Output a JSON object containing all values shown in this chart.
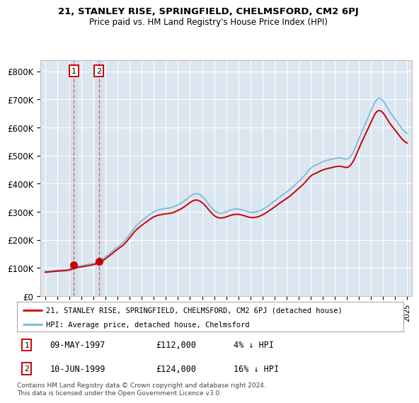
{
  "title_line1": "21, STANLEY RISE, SPRINGFIELD, CHELMSFORD, CM2 6PJ",
  "title_line2": "Price paid vs. HM Land Registry's House Price Index (HPI)",
  "ylabel_ticks": [
    "£0",
    "£100K",
    "£200K",
    "£300K",
    "£400K",
    "£500K",
    "£600K",
    "£700K",
    "£800K"
  ],
  "ytick_values": [
    0,
    100000,
    200000,
    300000,
    400000,
    500000,
    600000,
    700000,
    800000
  ],
  "ylim": [
    0,
    840000
  ],
  "xlim_start": 1994.6,
  "xlim_end": 2025.4,
  "xtick_years": [
    1995,
    1996,
    1997,
    1998,
    1999,
    2000,
    2001,
    2002,
    2003,
    2004,
    2005,
    2006,
    2007,
    2008,
    2009,
    2010,
    2011,
    2012,
    2013,
    2014,
    2015,
    2016,
    2017,
    2018,
    2019,
    2020,
    2021,
    2022,
    2023,
    2024,
    2025
  ],
  "sale_dates": [
    1997.36,
    1999.45
  ],
  "sale_prices": [
    112000,
    124000
  ],
  "sale_labels": [
    "1",
    "2"
  ],
  "sale_info": [
    {
      "label": "1",
      "date": "09-MAY-1997",
      "price": "£112,000",
      "hpi": "4% ↓ HPI"
    },
    {
      "label": "2",
      "date": "10-JUN-1999",
      "price": "£124,000",
      "hpi": "16% ↓ HPI"
    }
  ],
  "hpi_color": "#7ab8d9",
  "price_color": "#cc0000",
  "vline_color": "#e05050",
  "box_color": "#cc0000",
  "legend_line1": "21, STANLEY RISE, SPRINGFIELD, CHELMSFORD, CM2 6PJ (detached house)",
  "legend_line2": "HPI: Average price, detached house, Chelmsford",
  "footnote": "Contains HM Land Registry data © Crown copyright and database right 2024.\nThis data is licensed under the Open Government Licence v3.0.",
  "background_plot": "#dce6f0",
  "background_fig": "#ffffff",
  "grid_color": "#ffffff",
  "hpi_data_x": [
    1995.0,
    1995.5,
    1996.0,
    1996.5,
    1997.0,
    1997.5,
    1998.0,
    1998.5,
    1999.0,
    1999.5,
    2000.0,
    2000.5,
    2001.0,
    2001.5,
    2002.0,
    2002.5,
    2003.0,
    2003.5,
    2004.0,
    2004.5,
    2005.0,
    2005.5,
    2006.0,
    2006.5,
    2007.0,
    2007.5,
    2008.0,
    2008.5,
    2009.0,
    2009.5,
    2010.0,
    2010.5,
    2011.0,
    2011.5,
    2012.0,
    2012.5,
    2013.0,
    2013.5,
    2014.0,
    2014.5,
    2015.0,
    2015.5,
    2016.0,
    2016.5,
    2017.0,
    2017.5,
    2018.0,
    2018.5,
    2019.0,
    2019.5,
    2020.0,
    2020.5,
    2021.0,
    2021.5,
    2022.0,
    2022.5,
    2023.0,
    2023.5,
    2024.0,
    2024.5,
    2025.0
  ],
  "hpi_data_y": [
    88000,
    90000,
    92000,
    93000,
    96000,
    104000,
    108000,
    113000,
    116000,
    125000,
    140000,
    158000,
    175000,
    193000,
    220000,
    248000,
    268000,
    285000,
    300000,
    308000,
    312000,
    316000,
    325000,
    338000,
    355000,
    365000,
    355000,
    330000,
    305000,
    295000,
    300000,
    308000,
    310000,
    305000,
    298000,
    300000,
    308000,
    322000,
    338000,
    355000,
    370000,
    388000,
    408000,
    430000,
    455000,
    468000,
    478000,
    485000,
    490000,
    492000,
    488000,
    510000,
    560000,
    610000,
    660000,
    700000,
    695000,
    660000,
    630000,
    600000,
    580000
  ],
  "price_data_x": [
    1995.0,
    1995.5,
    1996.0,
    1996.5,
    1997.0,
    1997.5,
    1998.0,
    1998.5,
    1999.0,
    1999.5,
    2000.0,
    2000.5,
    2001.0,
    2001.5,
    2002.0,
    2002.5,
    2003.0,
    2003.5,
    2004.0,
    2004.5,
    2005.0,
    2005.5,
    2006.0,
    2006.5,
    2007.0,
    2007.5,
    2008.0,
    2008.5,
    2009.0,
    2009.5,
    2010.0,
    2010.5,
    2011.0,
    2011.5,
    2012.0,
    2012.5,
    2013.0,
    2013.5,
    2014.0,
    2014.5,
    2015.0,
    2015.5,
    2016.0,
    2016.5,
    2017.0,
    2017.5,
    2018.0,
    2018.5,
    2019.0,
    2019.5,
    2020.0,
    2020.5,
    2021.0,
    2021.5,
    2022.0,
    2022.5,
    2023.0,
    2023.5,
    2024.0,
    2024.5,
    2025.0
  ],
  "price_data_y": [
    85000,
    87000,
    89000,
    90000,
    93000,
    100000,
    104000,
    108000,
    112000,
    120000,
    133000,
    150000,
    167000,
    183000,
    208000,
    234000,
    252000,
    268000,
    282000,
    289000,
    293000,
    296000,
    305000,
    317000,
    333000,
    342000,
    333000,
    310000,
    287000,
    278000,
    282000,
    289000,
    291000,
    286000,
    280000,
    281000,
    289000,
    302000,
    317000,
    333000,
    347000,
    364000,
    383000,
    403000,
    427000,
    439000,
    449000,
    455000,
    460000,
    462000,
    458000,
    478000,
    526000,
    572000,
    619000,
    657000,
    652000,
    619000,
    591000,
    563000,
    545000
  ]
}
